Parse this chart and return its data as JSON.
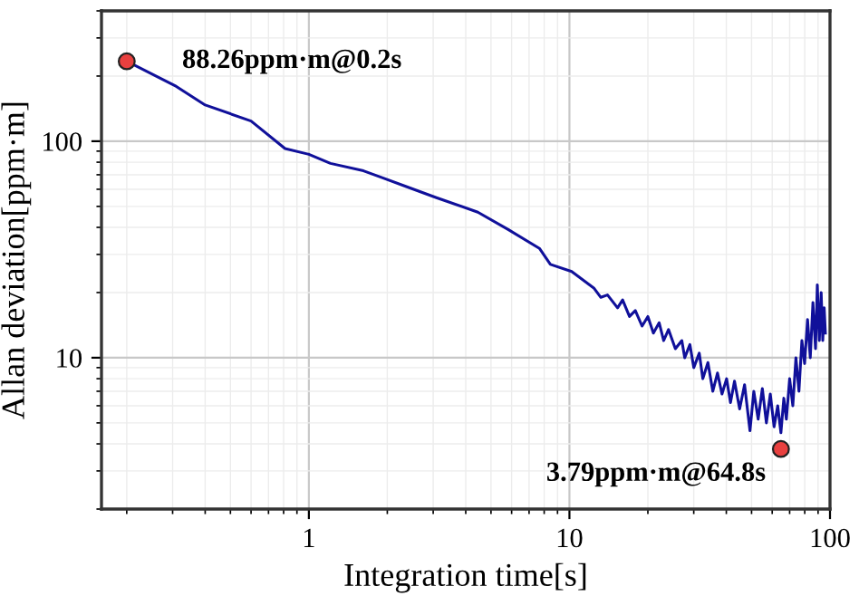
{
  "chart_data": {
    "type": "line",
    "xlabel": "Integration time[s]",
    "ylabel": "Allan deviation[ppm·m]",
    "log": "xy",
    "xlim": [
      0.16,
      100
    ],
    "ylim": [
      2,
      400
    ],
    "xticks": [
      1,
      10,
      100
    ],
    "yticks": [
      10,
      100
    ],
    "grid": true,
    "line_style": "solid",
    "marker": "none",
    "series": [
      {
        "color": "#10109a",
        "x": [
          0.2,
          0.31,
          0.4,
          0.6,
          0.81,
          1.0,
          1.21,
          1.62,
          1.9,
          2.34,
          3.07,
          4.45,
          5.84,
          7.67,
          8.45,
          10.2,
          12.4,
          13.2,
          14,
          15.3,
          16,
          17,
          17.9,
          19,
          20,
          21,
          22.1,
          23,
          24,
          25.5,
          27,
          27.7,
          29,
          30,
          31.5,
          32.5,
          34,
          35.5,
          37,
          38.5,
          40.1,
          41.5,
          43,
          45,
          47,
          49.3,
          51,
          53,
          55,
          57,
          59,
          61,
          63,
          64.8,
          66.5,
          68,
          70,
          72,
          74,
          76,
          78,
          79.9,
          82,
          84,
          86,
          88,
          89.4,
          91,
          92.5,
          93.8,
          95,
          96
        ],
        "values": [
          234,
          179,
          147,
          124,
          92.5,
          87,
          79,
          73,
          68,
          62,
          55,
          47,
          39,
          32,
          27,
          25,
          21,
          19,
          19.5,
          17,
          18.5,
          15.5,
          16.5,
          14,
          15.5,
          13,
          14.5,
          12,
          13.5,
          11,
          12,
          10,
          11.5,
          9,
          10.5,
          8,
          9.5,
          7,
          8.5,
          6.8,
          8,
          6.2,
          7.8,
          5.8,
          7.5,
          4.6,
          7,
          5.2,
          7.2,
          5,
          6.8,
          4.8,
          6,
          4.5,
          6.5,
          5.2,
          8,
          6,
          10,
          7,
          12,
          9.4,
          15,
          10,
          18,
          11,
          21.7,
          12,
          20,
          12,
          17,
          13
        ]
      },
      {
        "type": "scatter",
        "color": "#e8403f",
        "marker": "circle",
        "x": [
          0.2,
          64.8
        ],
        "values": [
          234,
          3.79
        ]
      }
    ],
    "annotations": [
      "88.26ppm·m@0.2s",
      "3.79ppm·m@64.8s"
    ]
  }
}
